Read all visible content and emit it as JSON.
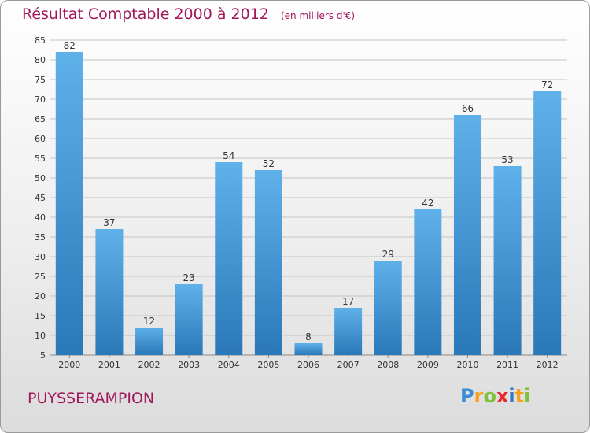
{
  "title": "Résultat Comptable 2000 à 2012",
  "unit": "(en milliers d'€)",
  "commune": "PUYSSERAMPION",
  "logo": {
    "letters": [
      "P",
      "r",
      "o",
      "x",
      "i",
      "t",
      "i"
    ],
    "colors": [
      "#3a8ad6",
      "#f7a11a",
      "#7cc23a",
      "#e8262d",
      "#2e79c9",
      "#f7a11a",
      "#7cc23a"
    ]
  },
  "colors": {
    "bar": "#3a93d8",
    "title": "#a0185a"
  },
  "chart_data": {
    "type": "bar",
    "categories": [
      "2000",
      "2001",
      "2002",
      "2003",
      "2004",
      "2005",
      "2006",
      "2007",
      "2008",
      "2009",
      "2010",
      "2011",
      "2012"
    ],
    "values": [
      82,
      37,
      12,
      23,
      54,
      52,
      8,
      17,
      29,
      42,
      66,
      53,
      72
    ],
    "data_labels": [
      "82",
      "37",
      "12",
      "23",
      "54",
      "52",
      "8",
      "17",
      "29",
      "42",
      "66",
      "53",
      "72"
    ],
    "ylim": [
      5,
      85
    ],
    "yticks": [
      5,
      10,
      15,
      20,
      25,
      30,
      35,
      40,
      45,
      50,
      55,
      60,
      65,
      70,
      75,
      80,
      85
    ],
    "title": "Résultat Comptable 2000 à 2012",
    "xlabel": "",
    "ylabel": "",
    "grid": true
  }
}
